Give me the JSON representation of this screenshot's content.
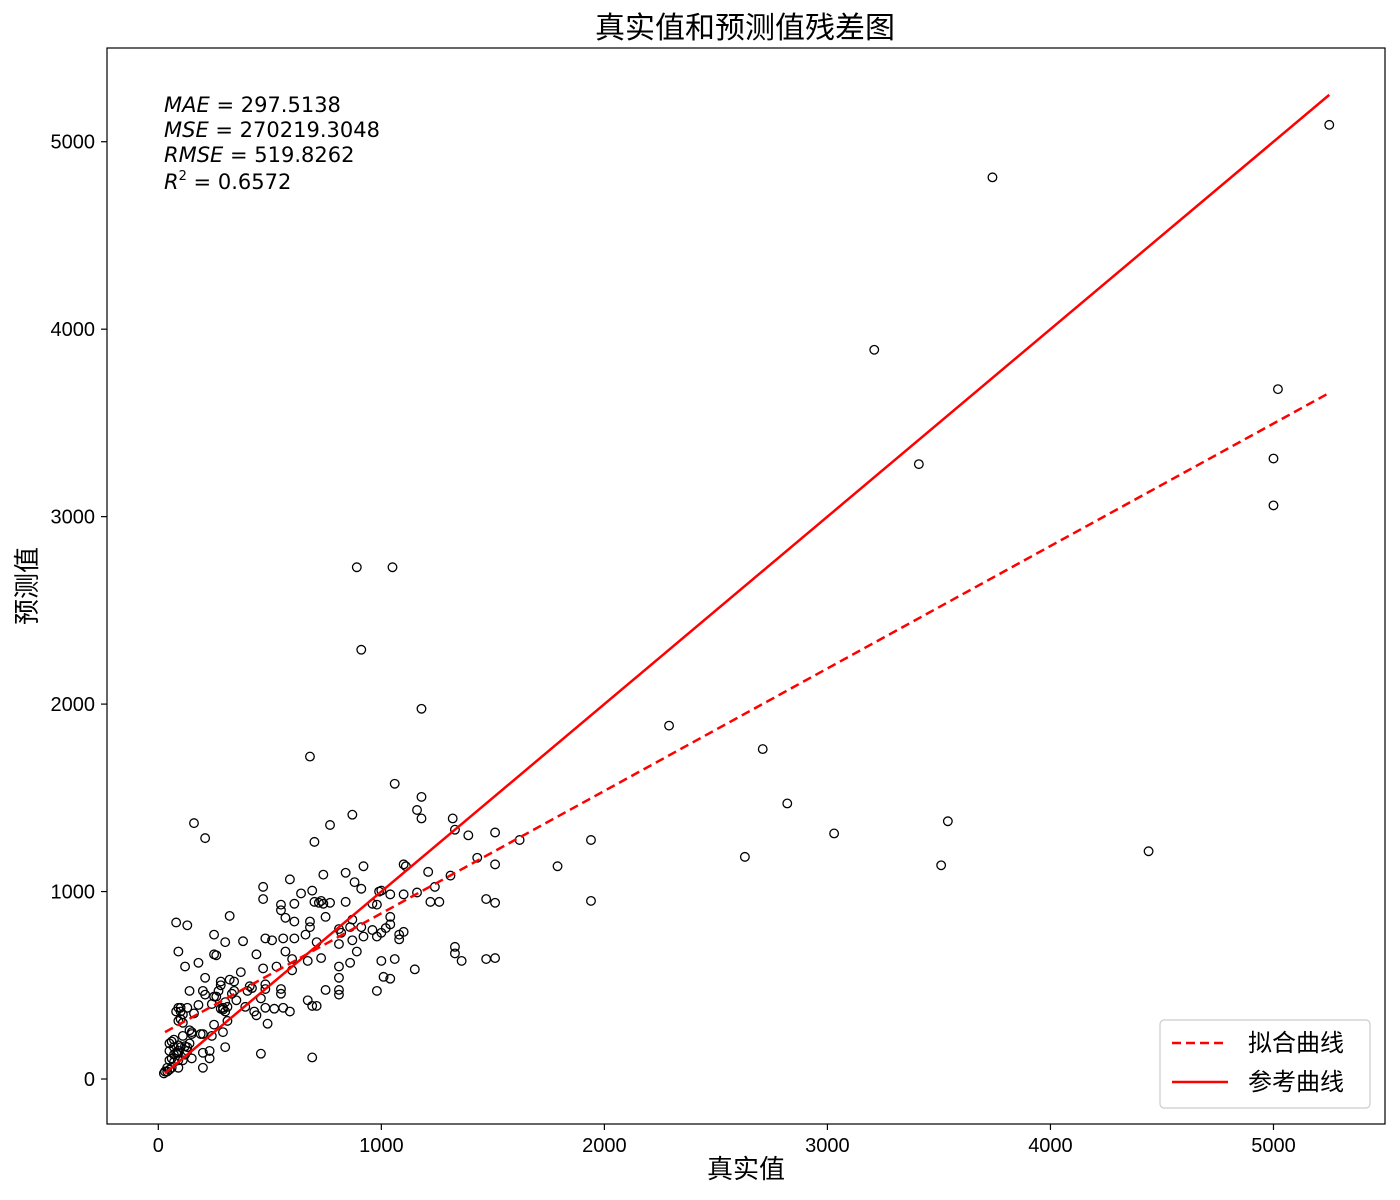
{
  "chart_data": {
    "type": "scatter",
    "title": "真实值和预测值残差图",
    "xlabel": "真实值",
    "ylabel": "预测值",
    "xlim": [
      -230,
      5500
    ],
    "ylim": [
      -240,
      5500
    ],
    "xticks": [
      0,
      1000,
      2000,
      3000,
      4000,
      5000
    ],
    "yticks": [
      0,
      1000,
      2000,
      3000,
      4000,
      5000
    ],
    "grid": false,
    "legend_position": "lower-right",
    "metrics": {
      "mae": {
        "label": "MAE",
        "value": "297.5138"
      },
      "mse": {
        "label": "MSE",
        "value": "270219.3048"
      },
      "rmse": {
        "label": "RMSE",
        "value": "519.8262"
      },
      "r2": {
        "label": "R",
        "sup": "2",
        "value": "0.6572"
      }
    },
    "fit_line": {
      "name": "拟合曲线",
      "color": "#ff0000",
      "style": "dashed",
      "x": [
        30,
        5250
      ],
      "y": [
        250,
        3660
      ]
    },
    "reference_line": {
      "name": "参考曲线",
      "color": "#ff0000",
      "style": "solid",
      "x": [
        30,
        5250
      ],
      "y": [
        30,
        5250
      ]
    },
    "points": [
      [
        5250,
        5090
      ],
      [
        3740,
        4810
      ],
      [
        3210,
        3890
      ],
      [
        3410,
        3280
      ],
      [
        5020,
        3680
      ],
      [
        5000,
        3310
      ],
      [
        5000,
        3060
      ],
      [
        4440,
        1215
      ],
      [
        3540,
        1375
      ],
      [
        3510,
        1140
      ],
      [
        3030,
        1310
      ],
      [
        2820,
        1470
      ],
      [
        2710,
        1760
      ],
      [
        2630,
        1185
      ],
      [
        2290,
        1885
      ],
      [
        1940,
        1275
      ],
      [
        1940,
        950
      ],
      [
        1790,
        1135
      ],
      [
        1620,
        1275
      ],
      [
        1510,
        1315
      ],
      [
        1510,
        1145
      ],
      [
        1510,
        940
      ],
      [
        1510,
        645
      ],
      [
        1470,
        960
      ],
      [
        1470,
        640
      ],
      [
        1430,
        1180
      ],
      [
        1390,
        1300
      ],
      [
        1360,
        630
      ],
      [
        1330,
        1330
      ],
      [
        1330,
        705
      ],
      [
        1330,
        670
      ],
      [
        1320,
        1390
      ],
      [
        1310,
        1085
      ],
      [
        1260,
        945
      ],
      [
        1240,
        1025
      ],
      [
        1220,
        945
      ],
      [
        1210,
        1105
      ],
      [
        1180,
        1975
      ],
      [
        1180,
        1505
      ],
      [
        1180,
        1390
      ],
      [
        1160,
        1435
      ],
      [
        1160,
        995
      ],
      [
        1150,
        585
      ],
      [
        1110,
        1135
      ],
      [
        1100,
        1145
      ],
      [
        1100,
        985
      ],
      [
        1100,
        785
      ],
      [
        1080,
        770
      ],
      [
        1080,
        745
      ],
      [
        1060,
        1575
      ],
      [
        1060,
        640
      ],
      [
        1050,
        2730
      ],
      [
        1040,
        985
      ],
      [
        1040,
        865
      ],
      [
        1040,
        825
      ],
      [
        1040,
        535
      ],
      [
        1020,
        805
      ],
      [
        1010,
        545
      ],
      [
        1000,
        1005
      ],
      [
        1000,
        780
      ],
      [
        1000,
        630
      ],
      [
        990,
        1000
      ],
      [
        980,
        930
      ],
      [
        980,
        760
      ],
      [
        980,
        470
      ],
      [
        960,
        795
      ],
      [
        960,
        935
      ],
      [
        920,
        1135
      ],
      [
        910,
        2290
      ],
      [
        920,
        760
      ],
      [
        910,
        1015
      ],
      [
        910,
        810
      ],
      [
        890,
        2730
      ],
      [
        890,
        680
      ],
      [
        880,
        1050
      ],
      [
        870,
        1410
      ],
      [
        870,
        850
      ],
      [
        870,
        740
      ],
      [
        860,
        620
      ],
      [
        860,
        810
      ],
      [
        840,
        945
      ],
      [
        840,
        1100
      ],
      [
        820,
        780
      ],
      [
        810,
        720
      ],
      [
        810,
        800
      ],
      [
        810,
        540
      ],
      [
        810,
        600
      ],
      [
        810,
        475
      ],
      [
        810,
        450
      ],
      [
        770,
        1355
      ],
      [
        770,
        940
      ],
      [
        750,
        865
      ],
      [
        750,
        475
      ],
      [
        740,
        1090
      ],
      [
        740,
        935
      ],
      [
        730,
        950
      ],
      [
        730,
        645
      ],
      [
        720,
        940
      ],
      [
        710,
        730
      ],
      [
        700,
        1265
      ],
      [
        710,
        390
      ],
      [
        700,
        945
      ],
      [
        690,
        1005
      ],
      [
        690,
        115
      ],
      [
        680,
        1720
      ],
      [
        680,
        840
      ],
      [
        680,
        810
      ],
      [
        690,
        390
      ],
      [
        670,
        630
      ],
      [
        670,
        420
      ],
      [
        660,
        770
      ],
      [
        640,
        990
      ],
      [
        610,
        935
      ],
      [
        610,
        840
      ],
      [
        610,
        750
      ],
      [
        600,
        640
      ],
      [
        600,
        580
      ],
      [
        590,
        1065
      ],
      [
        590,
        360
      ],
      [
        570,
        860
      ],
      [
        570,
        680
      ],
      [
        560,
        750
      ],
      [
        560,
        380
      ],
      [
        550,
        930
      ],
      [
        550,
        900
      ],
      [
        550,
        480
      ],
      [
        550,
        455
      ],
      [
        530,
        600
      ],
      [
        520,
        375
      ],
      [
        510,
        740
      ],
      [
        490,
        295
      ],
      [
        480,
        750
      ],
      [
        480,
        505
      ],
      [
        480,
        480
      ],
      [
        480,
        380
      ],
      [
        470,
        1025
      ],
      [
        470,
        960
      ],
      [
        470,
        590
      ],
      [
        460,
        430
      ],
      [
        460,
        135
      ],
      [
        440,
        665
      ],
      [
        440,
        340
      ],
      [
        430,
        360
      ],
      [
        420,
        485
      ],
      [
        410,
        495
      ],
      [
        400,
        470
      ],
      [
        390,
        385
      ],
      [
        380,
        735
      ],
      [
        370,
        570
      ],
      [
        350,
        420
      ],
      [
        340,
        520
      ],
      [
        340,
        470
      ],
      [
        330,
        455
      ],
      [
        320,
        870
      ],
      [
        320,
        530
      ],
      [
        310,
        310
      ],
      [
        310,
        385
      ],
      [
        300,
        410
      ],
      [
        300,
        360
      ],
      [
        300,
        730
      ],
      [
        300,
        170
      ],
      [
        290,
        380
      ],
      [
        290,
        370
      ],
      [
        290,
        250
      ],
      [
        280,
        520
      ],
      [
        280,
        500
      ],
      [
        280,
        375
      ],
      [
        270,
        470
      ],
      [
        260,
        440
      ],
      [
        260,
        660
      ],
      [
        250,
        665
      ],
      [
        250,
        770
      ],
      [
        250,
        440
      ],
      [
        250,
        290
      ],
      [
        240,
        400
      ],
      [
        240,
        230
      ],
      [
        230,
        150
      ],
      [
        230,
        110
      ],
      [
        210,
        1285
      ],
      [
        210,
        540
      ],
      [
        210,
        450
      ],
      [
        200,
        470
      ],
      [
        200,
        240
      ],
      [
        200,
        140
      ],
      [
        200,
        60
      ],
      [
        190,
        240
      ],
      [
        180,
        395
      ],
      [
        180,
        620
      ],
      [
        160,
        350
      ],
      [
        160,
        1365
      ],
      [
        150,
        110
      ],
      [
        150,
        250
      ],
      [
        150,
        240
      ],
      [
        140,
        470
      ],
      [
        140,
        260
      ],
      [
        140,
        190
      ],
      [
        130,
        820
      ],
      [
        130,
        380
      ],
      [
        130,
        150
      ],
      [
        130,
        170
      ],
      [
        120,
        600
      ],
      [
        120,
        175
      ],
      [
        120,
        130
      ],
      [
        110,
        345
      ],
      [
        110,
        300
      ],
      [
        110,
        230
      ],
      [
        110,
        100
      ],
      [
        100,
        380
      ],
      [
        100,
        360
      ],
      [
        100,
        320
      ],
      [
        100,
        170
      ],
      [
        90,
        680
      ],
      [
        90,
        380
      ],
      [
        90,
        310
      ],
      [
        90,
        180
      ],
      [
        90,
        150
      ],
      [
        90,
        140
      ],
      [
        90,
        100
      ],
      [
        90,
        60
      ],
      [
        80,
        835
      ],
      [
        80,
        360
      ],
      [
        80,
        140
      ],
      [
        70,
        210
      ],
      [
        70,
        170
      ],
      [
        70,
        130
      ],
      [
        70,
        90
      ],
      [
        60,
        200
      ],
      [
        60,
        110
      ],
      [
        60,
        60
      ],
      [
        50,
        190
      ],
      [
        50,
        150
      ],
      [
        50,
        100
      ],
      [
        50,
        50
      ],
      [
        40,
        60
      ],
      [
        40,
        40
      ],
      [
        30,
        40
      ],
      [
        25,
        30
      ]
    ]
  }
}
